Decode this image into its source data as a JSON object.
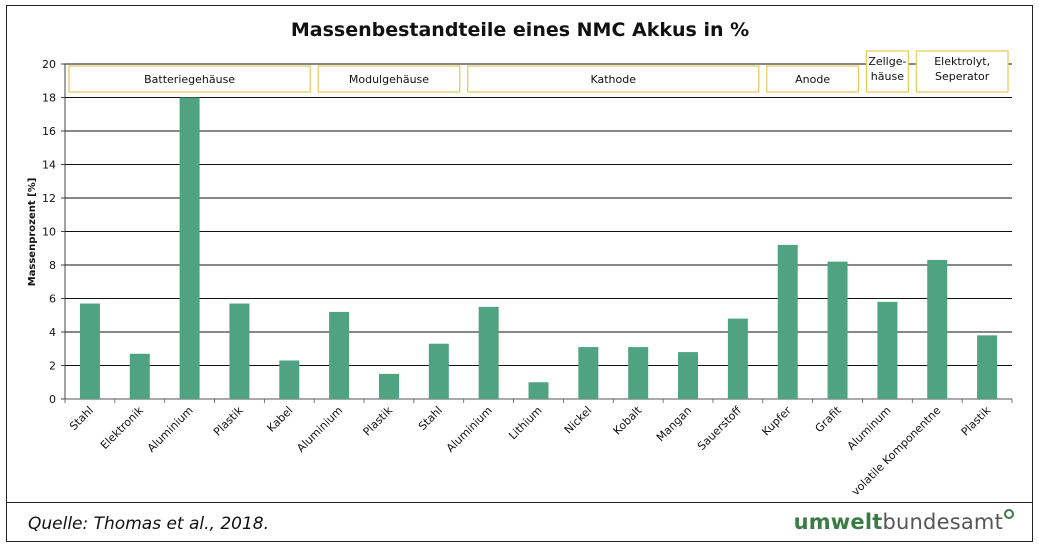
{
  "source": "Quelle: Thomas et al., 2018.",
  "logo": {
    "part1": "umwelt",
    "part2": "bundesamt"
  },
  "chart_data": {
    "type": "bar",
    "title": "Massenbestandteile eines NMC Akkus in %",
    "xlabel": "",
    "ylabel": "Massenprozent [%]",
    "ylim": [
      0,
      20
    ],
    "yticks": [
      0,
      2,
      4,
      6,
      8,
      10,
      12,
      14,
      16,
      18,
      20
    ],
    "grid": true,
    "bar_color": "#4fa382",
    "group_border_color": "#e8c95a",
    "categories": [
      "Stahl",
      "Elektronik",
      "Aluminium",
      "Plastik",
      "Kabel",
      "Aluminium",
      "Plastik",
      "Stahl",
      "Aluminium",
      "Lithium",
      "Nickel",
      "Kobalt",
      "Mangan",
      "Sauerstoff",
      "Kupfer",
      "Grafit",
      "Aluminum",
      "volatile Komponentne",
      "Plastik"
    ],
    "values": [
      5.7,
      2.7,
      18.0,
      5.7,
      2.3,
      5.2,
      1.5,
      3.3,
      5.5,
      1.0,
      3.1,
      3.1,
      2.8,
      4.8,
      9.2,
      8.2,
      5.8,
      8.3,
      3.8
    ],
    "groups": [
      {
        "label": [
          "Batteriegehäuse"
        ],
        "start": 0,
        "end": 4
      },
      {
        "label": [
          "Modulgehäuse"
        ],
        "start": 5,
        "end": 7
      },
      {
        "label": [
          "Kathode"
        ],
        "start": 8,
        "end": 13
      },
      {
        "label": [
          "Anode"
        ],
        "start": 14,
        "end": 15
      },
      {
        "label": [
          "Zellge-",
          "häuse"
        ],
        "start": 16,
        "end": 16
      },
      {
        "label": [
          "Elektrolyt,",
          "Seperator"
        ],
        "start": 17,
        "end": 18
      }
    ]
  }
}
